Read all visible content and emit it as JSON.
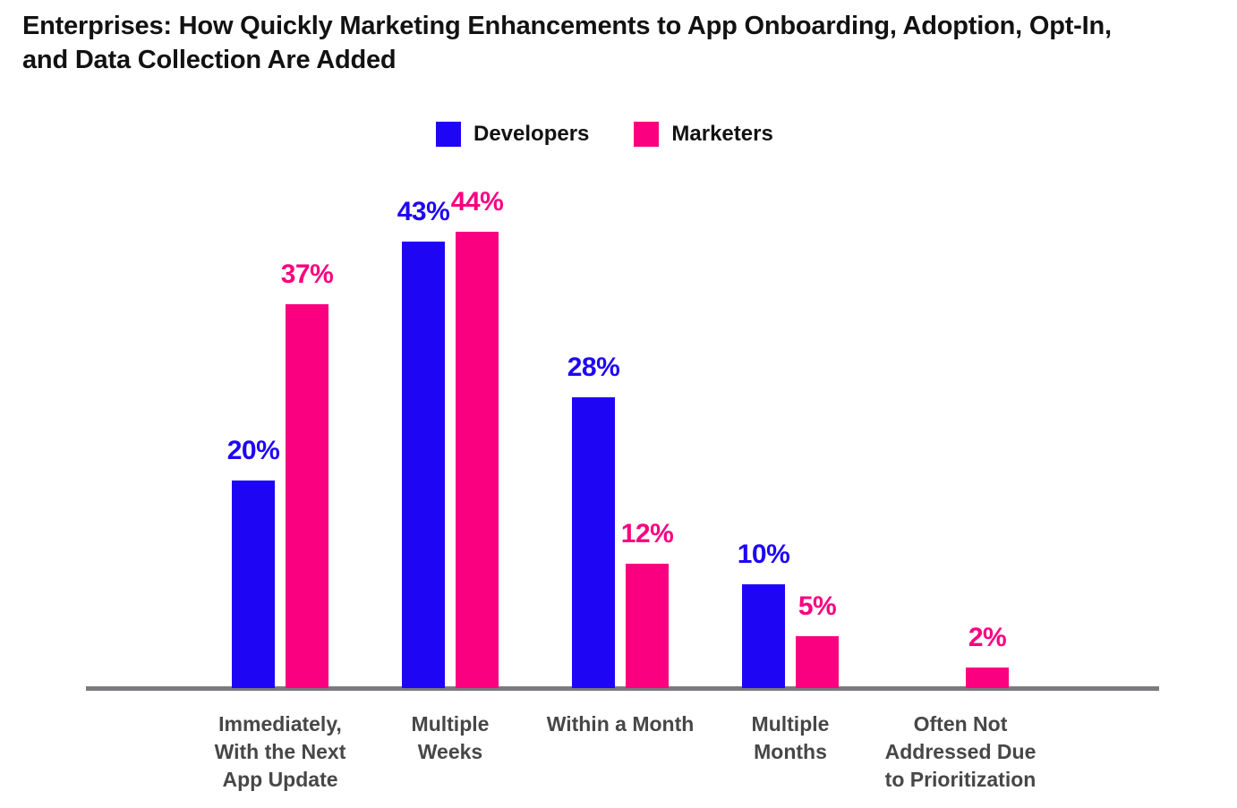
{
  "chart_data": {
    "type": "bar",
    "title": "Enterprises: How Quickly Marketing Enhancements to App Onboarding, Adoption, Opt-In, and Data Collection Are Added",
    "categories": [
      "Immediately,\nWith the Next\nApp Update",
      "Multiple\nWeeks",
      "Within a Month",
      "Multiple\nMonths",
      "Often Not\nAddressed Due\nto Prioritization"
    ],
    "series": [
      {
        "name": "Developers",
        "color": "#1E06F5",
        "values": [
          20,
          43,
          28,
          10,
          null
        ]
      },
      {
        "name": "Marketers",
        "color": "#FA0080",
        "values": [
          37,
          44,
          12,
          5,
          2
        ]
      }
    ],
    "value_suffix": "%",
    "ylim": [
      0,
      50
    ],
    "grid": false,
    "legend_position": "top-center",
    "colors": {
      "axis_line": "#7B7B7F",
      "category_label": "#474747",
      "title": "#121212"
    }
  }
}
